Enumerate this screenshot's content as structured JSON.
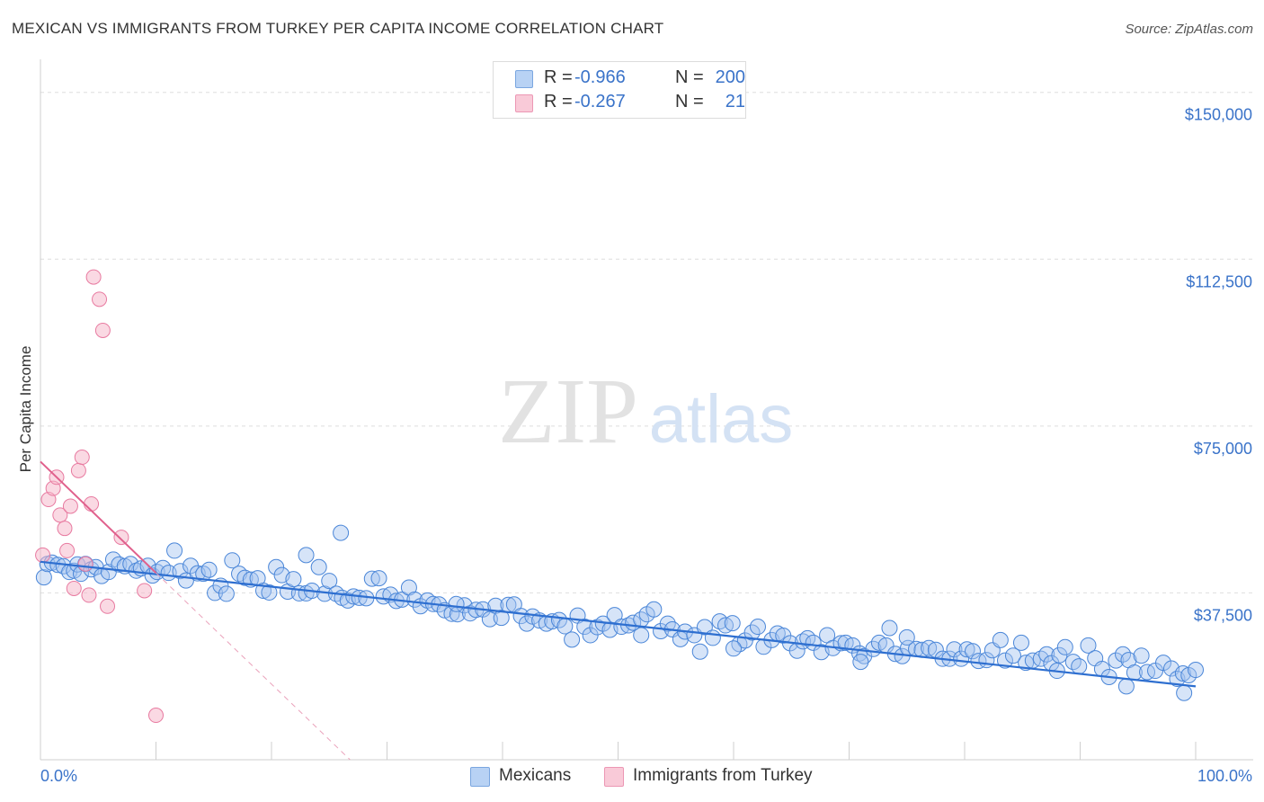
{
  "title": "MEXICAN VS IMMIGRANTS FROM TURKEY PER CAPITA INCOME CORRELATION CHART",
  "source": "Source: ZipAtlas.com",
  "watermark": {
    "zip": "ZIP",
    "atlas": "atlas"
  },
  "legend": {
    "r_label": "R =",
    "n_label": "N =",
    "rows": [
      {
        "r": "-0.966",
        "n": "200",
        "color": "#a8c8f0"
      },
      {
        "r": "-0.267",
        "n": "21",
        "color": "#f4b8cb"
      }
    ]
  },
  "bottom_legend": {
    "mexicans": "Mexicans",
    "turkey": "Immigrants from Turkey"
  },
  "chart_data": {
    "type": "scatter",
    "title": "MEXICAN VS IMMIGRANTS FROM TURKEY PER CAPITA INCOME CORRELATION CHART",
    "xlabel": "",
    "ylabel": "Per Capita Income",
    "xlim": [
      0,
      100
    ],
    "ylim": [
      0,
      155000
    ],
    "x_tick_labels": [
      "0.0%",
      "100.0%"
    ],
    "y_ticks": [
      37500,
      75000,
      112500,
      150000
    ],
    "y_tick_labels": [
      "$37,500",
      "$75,000",
      "$112,500",
      "$150,000"
    ],
    "grid": true,
    "legend_position": "top-center",
    "colors": {
      "mexicans": "#4a86d8",
      "turkey": "#e87aa0",
      "trend_mexicans": "#2e6fd0",
      "trend_turkey": "#e0608c",
      "axis_text": "#3a73c9"
    },
    "series": [
      {
        "name": "Mexicans",
        "r": -0.966,
        "n": 200,
        "trend": {
          "x": [
            0,
            100
          ],
          "y": [
            44500,
            16500
          ]
        },
        "points": [
          [
            0.3,
            41000
          ],
          [
            0.6,
            44000
          ],
          [
            1.0,
            44300
          ],
          [
            1.5,
            43800
          ],
          [
            2.0,
            43500
          ],
          [
            2.5,
            42200
          ],
          [
            2.9,
            42500
          ],
          [
            3.2,
            43900
          ],
          [
            3.5,
            41800
          ],
          [
            3.9,
            44000
          ],
          [
            4.4,
            42800
          ],
          [
            4.8,
            43300
          ],
          [
            5.3,
            41300
          ],
          [
            5.9,
            42200
          ],
          [
            6.3,
            45000
          ],
          [
            6.8,
            43900
          ],
          [
            7.3,
            43500
          ],
          [
            7.8,
            44000
          ],
          [
            8.3,
            42500
          ],
          [
            8.7,
            43000
          ],
          [
            9.3,
            43600
          ],
          [
            9.7,
            41400
          ],
          [
            10.1,
            42200
          ],
          [
            10.6,
            43100
          ],
          [
            11.1,
            42000
          ],
          [
            11.6,
            47000
          ],
          [
            12.1,
            42400
          ],
          [
            12.6,
            40300
          ],
          [
            13.0,
            43600
          ],
          [
            13.6,
            41900
          ],
          [
            14.1,
            41800
          ],
          [
            14.6,
            42700
          ],
          [
            15.1,
            37500
          ],
          [
            15.6,
            39100
          ],
          [
            16.1,
            37300
          ],
          [
            16.6,
            44800
          ],
          [
            17.2,
            41800
          ],
          [
            17.7,
            40900
          ],
          [
            18.2,
            40500
          ],
          [
            18.8,
            40800
          ],
          [
            19.3,
            38000
          ],
          [
            19.8,
            37600
          ],
          [
            20.4,
            43300
          ],
          [
            20.9,
            41500
          ],
          [
            21.4,
            37800
          ],
          [
            21.9,
            40600
          ],
          [
            22.4,
            37400
          ],
          [
            23.0,
            37400
          ],
          [
            23.5,
            38000
          ],
          [
            24.1,
            43300
          ],
          [
            24.6,
            37300
          ],
          [
            25.0,
            40200
          ],
          [
            25.6,
            37300
          ],
          [
            26.1,
            36400
          ],
          [
            26.6,
            35800
          ],
          [
            27.1,
            36700
          ],
          [
            27.6,
            36400
          ],
          [
            28.2,
            36300
          ],
          [
            28.7,
            40700
          ],
          [
            29.3,
            40800
          ],
          [
            29.7,
            36700
          ],
          [
            30.3,
            37100
          ],
          [
            30.8,
            35700
          ],
          [
            31.3,
            36000
          ],
          [
            31.9,
            38700
          ],
          [
            32.4,
            36000
          ],
          [
            32.9,
            34500
          ],
          [
            33.5,
            35800
          ],
          [
            34.0,
            35000
          ],
          [
            34.5,
            34900
          ],
          [
            35.0,
            33600
          ],
          [
            35.6,
            32800
          ],
          [
            36.1,
            32700
          ],
          [
            36.7,
            34700
          ],
          [
            37.2,
            32900
          ],
          [
            37.7,
            33700
          ],
          [
            38.3,
            33800
          ],
          [
            38.9,
            31600
          ],
          [
            39.4,
            34600
          ],
          [
            39.9,
            31900
          ],
          [
            40.5,
            34800
          ],
          [
            41.0,
            34900
          ],
          [
            41.6,
            32300
          ],
          [
            42.1,
            30600
          ],
          [
            42.6,
            32200
          ],
          [
            43.2,
            31300
          ],
          [
            43.8,
            30600
          ],
          [
            44.3,
            31100
          ],
          [
            44.9,
            31400
          ],
          [
            45.4,
            30000
          ],
          [
            46.0,
            27000
          ],
          [
            46.5,
            32400
          ],
          [
            47.1,
            29900
          ],
          [
            47.6,
            28000
          ],
          [
            48.2,
            29800
          ],
          [
            48.7,
            30600
          ],
          [
            49.3,
            29200
          ],
          [
            49.7,
            32500
          ],
          [
            50.3,
            29900
          ],
          [
            50.9,
            30200
          ],
          [
            51.3,
            30800
          ],
          [
            52.0,
            31500
          ],
          [
            52.5,
            32700
          ],
          [
            53.1,
            33800
          ],
          [
            53.7,
            28900
          ],
          [
            54.3,
            30600
          ],
          [
            54.7,
            29300
          ],
          [
            55.4,
            27100
          ],
          [
            55.8,
            28800
          ],
          [
            56.6,
            28000
          ],
          [
            57.1,
            24300
          ],
          [
            57.5,
            29800
          ],
          [
            58.2,
            27400
          ],
          [
            58.8,
            31100
          ],
          [
            59.3,
            30200
          ],
          [
            59.9,
            30700
          ],
          [
            60.5,
            26000
          ],
          [
            61.0,
            26800
          ],
          [
            61.6,
            28600
          ],
          [
            62.1,
            29900
          ],
          [
            62.6,
            25400
          ],
          [
            63.3,
            26900
          ],
          [
            63.8,
            28400
          ],
          [
            64.3,
            27900
          ],
          [
            64.9,
            26200
          ],
          [
            65.5,
            24500
          ],
          [
            66.0,
            26600
          ],
          [
            66.4,
            27300
          ],
          [
            66.9,
            26300
          ],
          [
            67.6,
            24200
          ],
          [
            68.1,
            28000
          ],
          [
            68.6,
            25100
          ],
          [
            69.3,
            26200
          ],
          [
            69.7,
            26300
          ],
          [
            70.3,
            25700
          ],
          [
            70.9,
            23900
          ],
          [
            71.3,
            23300
          ],
          [
            72.1,
            24900
          ],
          [
            72.6,
            26300
          ],
          [
            73.2,
            25700
          ],
          [
            73.5,
            29600
          ],
          [
            74.0,
            23800
          ],
          [
            74.6,
            23300
          ],
          [
            75.1,
            25100
          ],
          [
            75.8,
            24900
          ],
          [
            76.3,
            24700
          ],
          [
            76.9,
            25100
          ],
          [
            77.5,
            24700
          ],
          [
            78.1,
            22700
          ],
          [
            78.7,
            22700
          ],
          [
            79.1,
            24800
          ],
          [
            79.7,
            22700
          ],
          [
            80.2,
            24800
          ],
          [
            80.7,
            24400
          ],
          [
            81.2,
            22200
          ],
          [
            81.9,
            22400
          ],
          [
            82.4,
            24600
          ],
          [
            83.1,
            26900
          ],
          [
            83.5,
            22300
          ],
          [
            84.2,
            23400
          ],
          [
            84.9,
            26300
          ],
          [
            85.3,
            21800
          ],
          [
            85.9,
            22300
          ],
          [
            86.6,
            22700
          ],
          [
            87.1,
            23700
          ],
          [
            87.5,
            21700
          ],
          [
            88.2,
            23500
          ],
          [
            88.7,
            25300
          ],
          [
            89.4,
            22000
          ],
          [
            89.9,
            21000
          ],
          [
            90.7,
            25700
          ],
          [
            91.3,
            22800
          ],
          [
            91.9,
            20400
          ],
          [
            92.5,
            18600
          ],
          [
            93.1,
            22300
          ],
          [
            93.7,
            23700
          ],
          [
            94.2,
            22400
          ],
          [
            94.7,
            19600
          ],
          [
            95.3,
            23400
          ],
          [
            95.8,
            19700
          ],
          [
            96.5,
            20000
          ],
          [
            97.2,
            21800
          ],
          [
            97.9,
            20500
          ],
          [
            98.4,
            18200
          ],
          [
            98.9,
            19400
          ],
          [
            99.4,
            19000
          ],
          [
            100.0,
            20200
          ],
          [
            26.0,
            51000
          ],
          [
            23.0,
            46000
          ],
          [
            36.0,
            35000
          ],
          [
            52.0,
            28000
          ],
          [
            60.0,
            25000
          ],
          [
            71.0,
            22000
          ],
          [
            88.0,
            20000
          ],
          [
            94.0,
            16500
          ],
          [
            99.0,
            15000
          ],
          [
            75.0,
            27500
          ]
        ]
      },
      {
        "name": "Immigrants from Turkey",
        "r": -0.267,
        "n": 21,
        "trend": {
          "x": [
            0,
            10
          ],
          "y": [
            67000,
            42000
          ]
        },
        "trend_dashed_extension": {
          "x": [
            10,
            30
          ],
          "y": [
            42000,
            -8000
          ]
        },
        "points": [
          [
            0.2,
            46000
          ],
          [
            0.7,
            58500
          ],
          [
            1.1,
            61000
          ],
          [
            1.4,
            63500
          ],
          [
            1.7,
            55000
          ],
          [
            2.1,
            52000
          ],
          [
            2.3,
            47000
          ],
          [
            2.6,
            57000
          ],
          [
            2.9,
            38500
          ],
          [
            3.3,
            65000
          ],
          [
            3.6,
            68000
          ],
          [
            3.9,
            44000
          ],
          [
            4.2,
            37000
          ],
          [
            4.4,
            57500
          ],
          [
            4.6,
            108500
          ],
          [
            5.1,
            103500
          ],
          [
            5.4,
            96500
          ],
          [
            5.8,
            34500
          ],
          [
            7.0,
            50000
          ],
          [
            9.0,
            38000
          ],
          [
            10.0,
            10000
          ]
        ]
      }
    ]
  }
}
